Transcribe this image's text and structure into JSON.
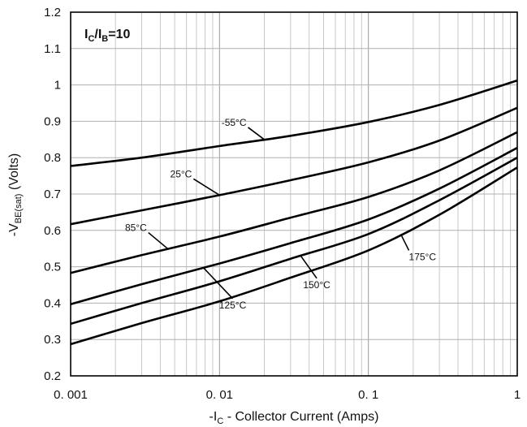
{
  "chart_data": {
    "type": "line",
    "xscale": "log",
    "xlim": [
      0.001,
      1
    ],
    "ylim": [
      0.2,
      1.2
    ],
    "grid": true,
    "xlabel": {
      "main": "-I",
      "sub": "C",
      "rest": " - Collector Current (Amps)"
    },
    "ylabel": {
      "main": "-V",
      "sub": "BE(sat)",
      "rest": " (Volts)"
    },
    "annotation": {
      "i": "I",
      "c": "C",
      "slash": "/I",
      "b": "B",
      "eq": "=10"
    },
    "x_tick_labels": [
      "0. 001",
      "0. 01",
      "0. 1",
      "1"
    ],
    "y_ticks": [
      0.2,
      0.3,
      0.4,
      0.5,
      0.6,
      0.7,
      0.8,
      0.9,
      1,
      1.1,
      1.2
    ],
    "y_tick_labels": [
      "0.2",
      "0.3",
      "0.4",
      "0.5",
      "0.6",
      "0.7",
      "0.8",
      "0.9",
      "1",
      "1.1",
      "1.2"
    ],
    "series": [
      {
        "name": "-55°C",
        "x": [
          0.001,
          0.003,
          0.01,
          0.03,
          0.1,
          0.3,
          1
        ],
        "y": [
          0.777,
          0.8,
          0.832,
          0.86,
          0.898,
          0.945,
          1.012
        ]
      },
      {
        "name": "25°C",
        "x": [
          0.001,
          0.003,
          0.01,
          0.03,
          0.1,
          0.3,
          1
        ],
        "y": [
          0.617,
          0.655,
          0.697,
          0.738,
          0.787,
          0.847,
          0.937
        ]
      },
      {
        "name": "85°C",
        "x": [
          0.001,
          0.003,
          0.01,
          0.03,
          0.1,
          0.3,
          1
        ],
        "y": [
          0.483,
          0.532,
          0.583,
          0.635,
          0.692,
          0.765,
          0.87
        ]
      },
      {
        "name": "125°C",
        "x": [
          0.001,
          0.003,
          0.01,
          0.03,
          0.1,
          0.3,
          1
        ],
        "y": [
          0.397,
          0.452,
          0.509,
          0.565,
          0.63,
          0.715,
          0.827
        ]
      },
      {
        "name": "150°C",
        "x": [
          0.001,
          0.003,
          0.01,
          0.03,
          0.1,
          0.3,
          1
        ],
        "y": [
          0.343,
          0.4,
          0.46,
          0.522,
          0.59,
          0.683,
          0.8
        ]
      },
      {
        "name": "175°C",
        "x": [
          0.001,
          0.003,
          0.01,
          0.03,
          0.1,
          0.3,
          1
        ],
        "y": [
          0.287,
          0.345,
          0.405,
          0.47,
          0.545,
          0.643,
          0.773
        ]
      }
    ],
    "curve_labels": [
      {
        "text": "-55°C",
        "series": 0,
        "at_x": 0.02
      },
      {
        "text": "25°C",
        "series": 1,
        "at_x": 0.01
      },
      {
        "text": "85°C",
        "series": 2,
        "at_x": 0.0045
      },
      {
        "text": "125°C",
        "series": 3,
        "at_x": 0.0078
      },
      {
        "text": "150°C",
        "series": 4,
        "at_x": 0.035
      },
      {
        "text": "175°C",
        "series": 5,
        "at_x": 0.165
      }
    ]
  }
}
